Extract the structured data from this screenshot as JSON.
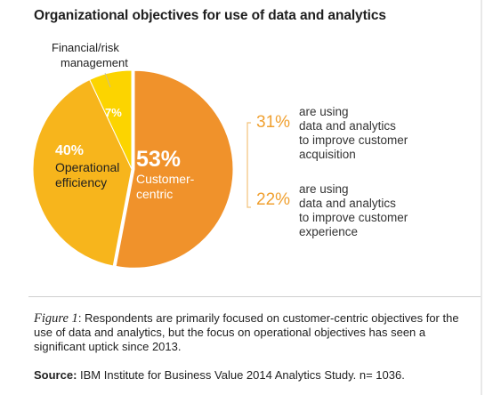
{
  "chart_data": {
    "type": "pie",
    "title": "Organizational objectives for use of data and analytics",
    "slices": [
      {
        "label_lines": [
          "Customer-",
          "centric"
        ],
        "value": 53,
        "value_label": "53%",
        "color": "#f0922b"
      },
      {
        "label_lines": [
          "Operational",
          "efficiency"
        ],
        "value": 40,
        "value_label": "40%",
        "color": "#f7b51c"
      },
      {
        "label_lines": [
          "Financial/risk",
          "management"
        ],
        "value": 7,
        "value_label": "7%",
        "color": "#fcd400"
      }
    ],
    "callouts": [
      {
        "value_label": "31%",
        "lines": [
          "are using",
          "data and analytics",
          "to improve customer",
          "acquisition"
        ]
      },
      {
        "value_label": "22%",
        "lines": [
          "are using",
          "data and analytics",
          "to improve customer",
          "experience"
        ]
      }
    ]
  },
  "caption": {
    "figure_label": "Figure 1",
    "text": ": Respondents are primarily focused on customer-centric objectives for the use of data and analytics, but the focus on operational objectives has seen a significant uptick since 2013."
  },
  "source": {
    "label": "Source:",
    "text": " IBM Institute for Business Value 2014 Analytics Study. n= 1036."
  },
  "colors": {
    "accent": "#f0a030",
    "bracket": "#f2c27a"
  }
}
